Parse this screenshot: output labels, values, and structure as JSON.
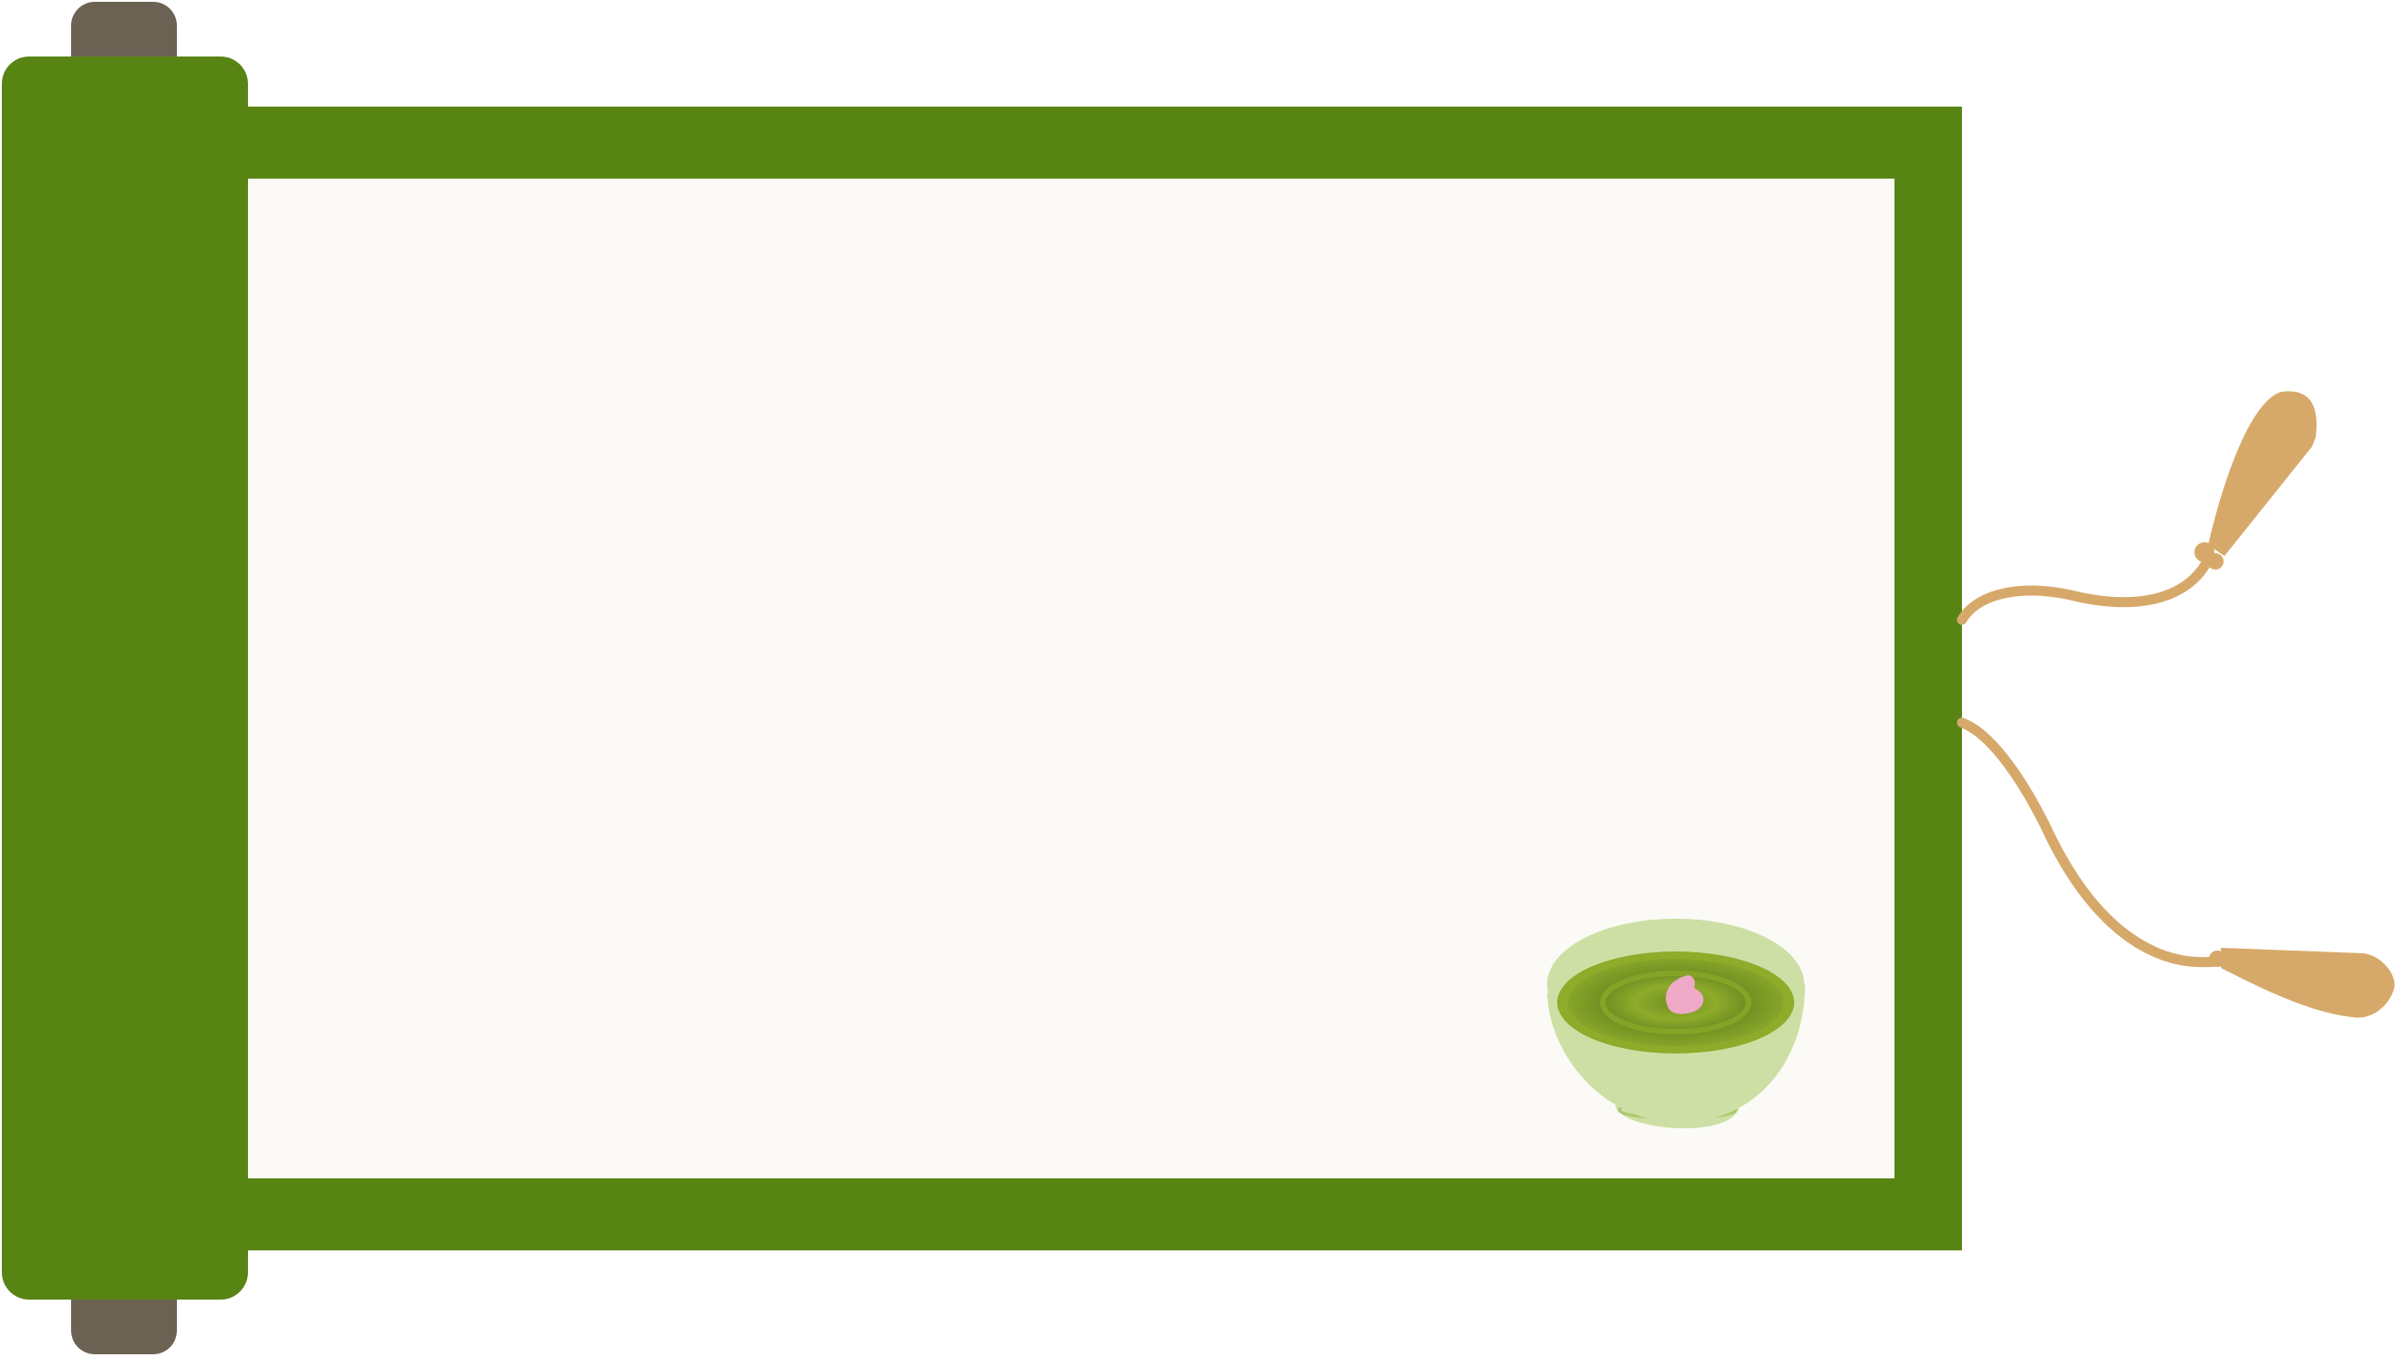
{
  "illustration": {
    "icons": {
      "roller_knob_top": "roller-knob-top-icon",
      "roller_knob_bottom": "roller-knob-bottom-icon",
      "roller": "scroll-roller-icon",
      "tassel_upper": "tassel-upper-icon",
      "tassel_lower": "tassel-lower-icon",
      "tea_bowl": "matcha-tea-bowl-icon",
      "petal": "sakura-petal-icon"
    },
    "colors": {
      "background": "#ffffff",
      "scroll_border": "#588414",
      "roller": "#588414",
      "roller_knob": "#6b6253",
      "paper": "#fbfaf6",
      "cord": "#d6a96a",
      "bowl": "#cddfa4",
      "bowl_inner_rim": "#a9c86e",
      "tea": "#8eab2a",
      "tea_dark": "#6f8f22",
      "petal": "#eeaac6"
    }
  }
}
